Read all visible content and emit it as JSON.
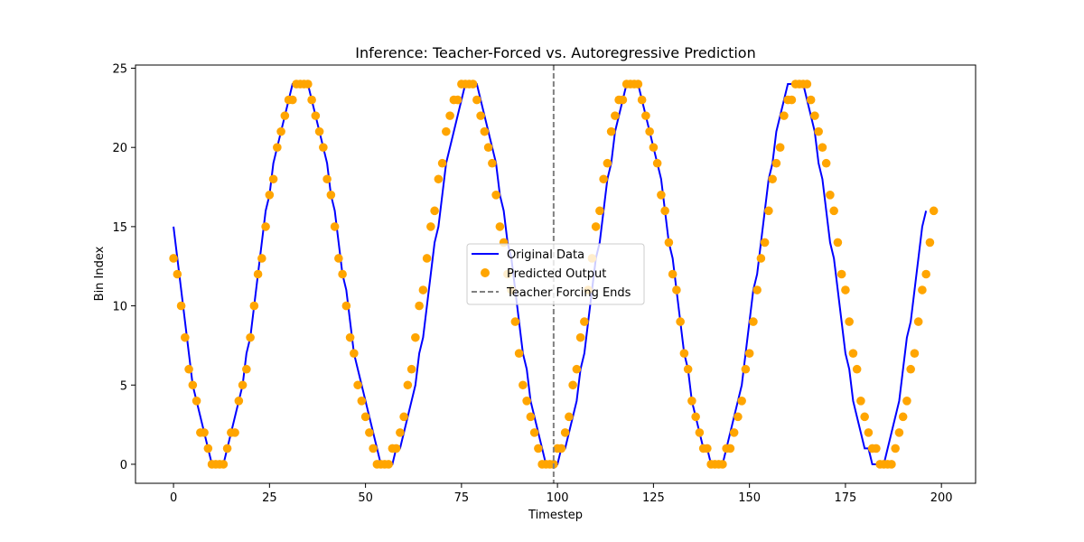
{
  "chart_data": {
    "type": "line",
    "title": "Inference: Teacher-Forced vs. Autoregressive Prediction",
    "xlabel": "Timestep",
    "ylabel": "Bin Index",
    "xlim": [
      -9.9,
      208.9
    ],
    "ylim": [
      -1.2,
      25.2
    ],
    "xticks": [
      0,
      25,
      50,
      75,
      100,
      125,
      150,
      175,
      200
    ],
    "yticks": [
      0,
      5,
      10,
      15,
      20,
      25
    ],
    "grid": false,
    "legend_position": "center",
    "teacher_forcing_end": 99,
    "colors": {
      "original": "#0000ff",
      "predicted": "#ffa500",
      "teacher": "#808080"
    },
    "series": [
      {
        "name": "Original Data",
        "style": "line",
        "values": [
          15,
          13,
          11,
          9,
          7,
          5,
          4,
          3,
          2,
          1,
          0,
          0,
          0,
          0,
          1,
          2,
          3,
          4,
          5,
          7,
          8,
          10,
          12,
          14,
          16,
          17,
          19,
          20,
          21,
          22,
          23,
          24,
          24,
          24,
          24,
          24,
          23,
          22,
          21,
          20,
          19,
          17,
          16,
          14,
          12,
          11,
          9,
          7,
          6,
          5,
          4,
          3,
          2,
          1,
          0,
          0,
          0,
          0,
          1,
          1,
          2,
          3,
          4,
          5,
          7,
          8,
          10,
          12,
          14,
          15,
          17,
          19,
          20,
          21,
          22,
          23,
          24,
          24,
          24,
          24,
          23,
          22,
          21,
          20,
          19,
          17,
          16,
          14,
          13,
          11,
          9,
          7,
          6,
          4,
          3,
          2,
          1,
          0,
          0,
          0,
          0,
          1,
          1,
          2,
          3,
          4,
          6,
          7,
          9,
          11,
          13,
          14,
          16,
          18,
          19,
          21,
          22,
          23,
          24,
          24,
          24,
          24,
          23,
          22,
          21,
          20,
          19,
          18,
          16,
          14,
          13,
          11,
          9,
          7,
          6,
          4,
          3,
          2,
          1,
          1,
          0,
          0,
          0,
          0,
          1,
          2,
          3,
          4,
          5,
          7,
          9,
          11,
          12,
          14,
          16,
          18,
          19,
          21,
          22,
          23,
          24,
          24,
          24,
          24,
          24,
          23,
          22,
          21,
          19,
          18,
          16,
          14,
          13,
          11,
          9,
          7,
          6,
          4,
          3,
          2,
          1,
          1,
          0,
          0,
          0,
          0,
          1,
          2,
          3,
          4,
          6,
          8,
          9,
          11,
          13,
          15,
          16
        ]
      },
      {
        "name": "Predicted Output",
        "style": "markers",
        "values": [
          13,
          12,
          10,
          8,
          6,
          5,
          4,
          2,
          2,
          1,
          0,
          0,
          0,
          0,
          1,
          2,
          2,
          4,
          5,
          6,
          8,
          10,
          12,
          13,
          15,
          17,
          18,
          20,
          21,
          22,
          23,
          23,
          24,
          24,
          24,
          24,
          23,
          22,
          21,
          20,
          18,
          17,
          15,
          13,
          12,
          10,
          8,
          7,
          5,
          4,
          3,
          2,
          1,
          0,
          0,
          0,
          0,
          1,
          1,
          2,
          3,
          5,
          6,
          8,
          10,
          11,
          13,
          15,
          16,
          18,
          19,
          21,
          22,
          23,
          23,
          24,
          24,
          24,
          24,
          23,
          22,
          21,
          20,
          19,
          17,
          15,
          14,
          12,
          11,
          9,
          7,
          5,
          4,
          3,
          2,
          1,
          0,
          0,
          0,
          0,
          1,
          1,
          2,
          3,
          5,
          6,
          8,
          9,
          11,
          13,
          15,
          16,
          18,
          19,
          21,
          22,
          23,
          23,
          24,
          24,
          24,
          24,
          23,
          22,
          21,
          20,
          19,
          17,
          16,
          14,
          12,
          11,
          9,
          7,
          6,
          4,
          3,
          2,
          1,
          1,
          0,
          0,
          0,
          0,
          1,
          1,
          2,
          3,
          4,
          6,
          7,
          9,
          11,
          13,
          14,
          16,
          18,
          19,
          20,
          22,
          23,
          23,
          24,
          24,
          24,
          24,
          23,
          22,
          21,
          20,
          19,
          17,
          16,
          14,
          12,
          11,
          9,
          7,
          6,
          4,
          3,
          2,
          1,
          1,
          0,
          0,
          0,
          0,
          1,
          2,
          3,
          4,
          6,
          7,
          9,
          11,
          12,
          14,
          16
        ]
      },
      {
        "name": "Teacher Forcing Ends",
        "style": "dashed-vertical"
      }
    ]
  }
}
